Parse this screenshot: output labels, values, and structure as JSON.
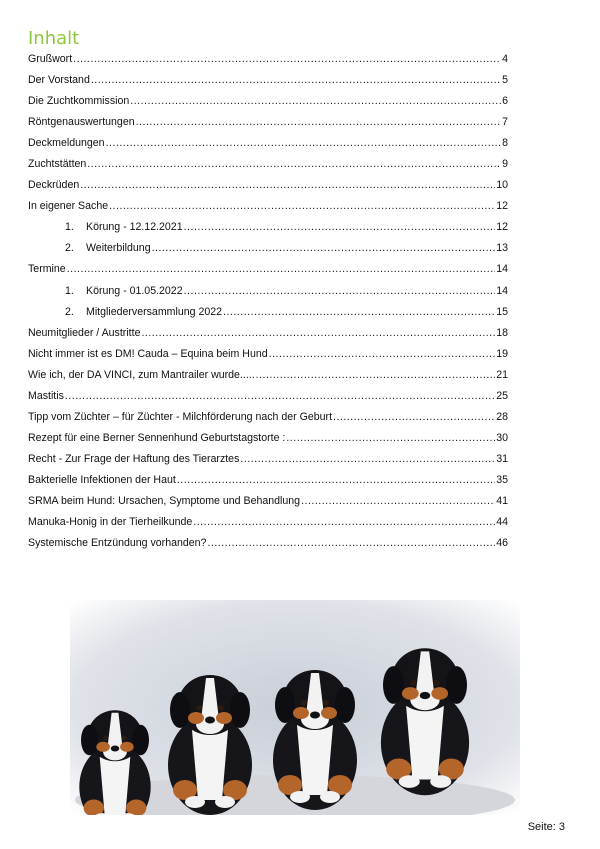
{
  "title": "Inhalt",
  "toc": [
    {
      "label": "Grußwort",
      "page": "4"
    },
    {
      "label": "Der Vorstand",
      "page": "5"
    },
    {
      "label": "Die Zuchtkommission",
      "page": "6"
    },
    {
      "label": "Röntgenauswertungen",
      "page": "7"
    },
    {
      "label": "Deckmeldungen",
      "page": "8"
    },
    {
      "label": "Zuchtstätten",
      "page": "9"
    },
    {
      "label": "Deckrüden",
      "page": "10"
    },
    {
      "label": "In eigener Sache",
      "page": "12"
    },
    {
      "num": "1.",
      "label": "Körung - 12.12.2021",
      "page": "12"
    },
    {
      "num": "2.",
      "label": "Weiterbildung",
      "page": "13"
    },
    {
      "label": "Termine",
      "page": "14"
    },
    {
      "num": "1.",
      "label": "Körung - 01.05.2022",
      "page": "14"
    },
    {
      "num": "2.",
      "label": "Mitgliederversammlung 2022",
      "page": "15"
    },
    {
      "label": "Neumitglieder / Austritte",
      "page": "18"
    },
    {
      "label": "Nicht immer ist es DM! Cauda – Equina beim Hund",
      "page": "19"
    },
    {
      "label": "Wie ich, der DA VINCI, zum Mantrailer wurde.....",
      "page": "21"
    },
    {
      "label": "Mastitis",
      "page": "25"
    },
    {
      "label": "Tipp vom Züchter – für Züchter  - Milchförderung nach der Geburt",
      "page": "28"
    },
    {
      "label": "Rezept für eine Berner Sennenhund Geburtstagstorte :",
      "page": "30"
    },
    {
      "label": "Recht - Zur Frage der Haftung des Tierarztes",
      "page": "31"
    },
    {
      "label": "Bakterielle Infektionen der Haut",
      "page": "35"
    },
    {
      "label": "SRMA beim Hund: Ursachen, Symptome und Behandlung",
      "page": "41"
    },
    {
      "label": "Manuka-Honig in der Tierheilkunde",
      "page": "44"
    },
    {
      "label": "Systemische Entzündung vorhanden?",
      "page": "46"
    }
  ],
  "footer": "Seite: 3",
  "colors": {
    "title": "#8dc63f"
  }
}
